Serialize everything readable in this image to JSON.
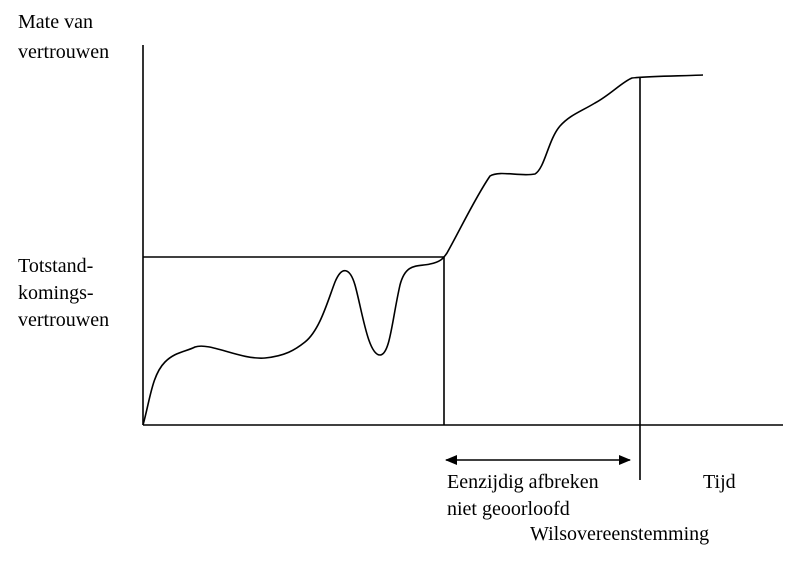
{
  "y_axis_label": {
    "lines": [
      "Mate van",
      "vertrouwen"
    ]
  },
  "reference_label": {
    "lines": [
      "Totstand-",
      "komings-",
      "vertrouwen"
    ]
  },
  "arrow_label": {
    "lines": [
      "Eenzijdig afbreken",
      "niet geoorloofd"
    ]
  },
  "agreement_label": "Wilsovereenstemming",
  "x_axis_label": "Tijd"
}
